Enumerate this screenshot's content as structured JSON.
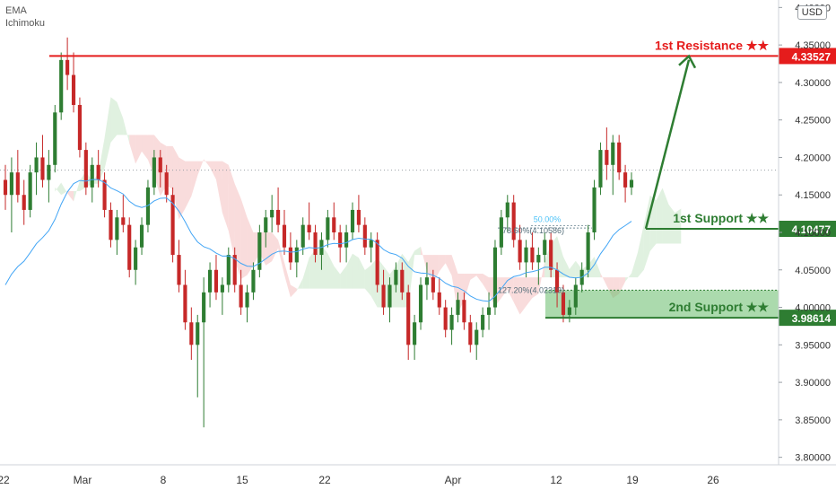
{
  "indicators": [
    "EMA",
    "Ichimoku"
  ],
  "currency": "USD",
  "chart_data": {
    "type": "candlestick",
    "y_axis": {
      "ylim": [
        3.79,
        4.41
      ],
      "ticks": [
        "4.40000",
        "4.35000",
        "4.30000",
        "4.25000",
        "4.20000",
        "4.15000",
        "4.10000",
        "4.05000",
        "4.00000",
        "3.95000",
        "3.90000",
        "3.85000",
        "3.80000"
      ],
      "tick_values": [
        4.4,
        4.35,
        4.3,
        4.25,
        4.2,
        4.15,
        4.1,
        4.05,
        4.0,
        3.95,
        3.9,
        3.85,
        3.8
      ]
    },
    "x_axis": {
      "labels": [
        "22",
        "Mar",
        "8",
        "15",
        "22",
        "Apr",
        "12",
        "19",
        "26"
      ]
    },
    "candles_ohlc": [
      [
        4.17,
        4.19,
        4.13,
        4.15
      ],
      [
        4.15,
        4.2,
        4.1,
        4.18
      ],
      [
        4.18,
        4.21,
        4.14,
        4.15
      ],
      [
        4.15,
        4.17,
        4.11,
        4.13
      ],
      [
        4.13,
        4.19,
        4.12,
        4.18
      ],
      [
        4.18,
        4.22,
        4.15,
        4.2
      ],
      [
        4.2,
        4.23,
        4.16,
        4.17
      ],
      [
        4.17,
        4.21,
        4.14,
        4.19
      ],
      [
        4.19,
        4.27,
        4.18,
        4.26
      ],
      [
        4.26,
        4.34,
        4.25,
        4.33
      ],
      [
        4.33,
        4.36,
        4.29,
        4.31
      ],
      [
        4.31,
        4.34,
        4.26,
        4.27
      ],
      [
        4.27,
        4.28,
        4.2,
        4.21
      ],
      [
        4.21,
        4.22,
        4.15,
        4.16
      ],
      [
        4.16,
        4.2,
        4.14,
        4.19
      ],
      [
        4.19,
        4.21,
        4.16,
        4.17
      ],
      [
        4.17,
        4.18,
        4.12,
        4.13
      ],
      [
        4.13,
        4.14,
        4.08,
        4.09
      ],
      [
        4.09,
        4.13,
        4.07,
        4.12
      ],
      [
        4.12,
        4.15,
        4.1,
        4.11
      ],
      [
        4.11,
        4.12,
        4.04,
        4.05
      ],
      [
        4.05,
        4.09,
        4.03,
        4.08
      ],
      [
        4.08,
        4.12,
        4.07,
        4.11
      ],
      [
        4.11,
        4.17,
        4.1,
        4.16
      ],
      [
        4.16,
        4.21,
        4.15,
        4.2
      ],
      [
        4.2,
        4.21,
        4.16,
        4.18
      ],
      [
        4.18,
        4.19,
        4.14,
        4.15
      ],
      [
        4.15,
        4.16,
        4.06,
        4.07
      ],
      [
        4.07,
        4.09,
        4.02,
        4.03
      ],
      [
        4.03,
        4.05,
        3.97,
        3.98
      ],
      [
        3.98,
        4.0,
        3.93,
        3.95
      ],
      [
        3.95,
        3.99,
        3.88,
        3.98
      ],
      [
        3.98,
        4.04,
        3.84,
        4.02
      ],
      [
        4.02,
        4.06,
        4.0,
        4.05
      ],
      [
        4.05,
        4.07,
        4.01,
        4.02
      ],
      [
        4.02,
        4.04,
        3.99,
        4.03
      ],
      [
        4.03,
        4.08,
        4.02,
        4.07
      ],
      [
        4.07,
        4.08,
        4.02,
        4.03
      ],
      [
        4.03,
        4.05,
        3.99,
        4.0
      ],
      [
        4.0,
        4.03,
        3.98,
        4.02
      ],
      [
        4.02,
        4.06,
        4.01,
        4.05
      ],
      [
        4.05,
        4.11,
        4.04,
        4.1
      ],
      [
        4.1,
        4.13,
        4.08,
        4.12
      ],
      [
        4.12,
        4.15,
        4.1,
        4.13
      ],
      [
        4.13,
        4.16,
        4.1,
        4.11
      ],
      [
        4.11,
        4.13,
        4.07,
        4.08
      ],
      [
        4.08,
        4.1,
        4.05,
        4.06
      ],
      [
        4.06,
        4.09,
        4.04,
        4.08
      ],
      [
        4.08,
        4.12,
        4.07,
        4.11
      ],
      [
        4.11,
        4.14,
        4.09,
        4.1
      ],
      [
        4.1,
        4.11,
        4.06,
        4.07
      ],
      [
        4.07,
        4.1,
        4.05,
        4.09
      ],
      [
        4.09,
        4.13,
        4.08,
        4.12
      ],
      [
        4.12,
        4.14,
        4.09,
        4.1
      ],
      [
        4.1,
        4.11,
        4.06,
        4.08
      ],
      [
        4.08,
        4.11,
        4.06,
        4.1
      ],
      [
        4.1,
        4.14,
        4.09,
        4.13
      ],
      [
        4.13,
        4.15,
        4.1,
        4.11
      ],
      [
        4.11,
        4.12,
        4.07,
        4.08
      ],
      [
        4.08,
        4.1,
        4.06,
        4.09
      ],
      [
        4.09,
        4.1,
        4.02,
        4.03
      ],
      [
        4.03,
        4.05,
        3.99,
        4.0
      ],
      [
        4.0,
        4.04,
        3.98,
        4.03
      ],
      [
        4.03,
        4.06,
        4.02,
        4.05
      ],
      [
        4.05,
        4.06,
        4.01,
        4.02
      ],
      [
        4.02,
        4.03,
        3.93,
        3.95
      ],
      [
        3.95,
        3.99,
        3.93,
        3.98
      ],
      [
        3.98,
        4.04,
        3.97,
        4.03
      ],
      [
        4.03,
        4.06,
        4.01,
        4.04
      ],
      [
        4.04,
        4.05,
        4.01,
        4.02
      ],
      [
        4.02,
        4.04,
        3.99,
        4.0
      ],
      [
        4.0,
        4.01,
        3.96,
        3.97
      ],
      [
        3.97,
        4.0,
        3.95,
        3.99
      ],
      [
        3.99,
        4.02,
        3.98,
        4.01
      ],
      [
        4.01,
        4.02,
        3.97,
        3.98
      ],
      [
        3.98,
        3.99,
        3.94,
        3.95
      ],
      [
        3.95,
        3.98,
        3.93,
        3.97
      ],
      [
        3.97,
        4.0,
        3.96,
        3.99
      ],
      [
        3.99,
        4.02,
        3.97,
        4.0
      ],
      [
        4.0,
        4.09,
        3.99,
        4.08
      ],
      [
        4.08,
        4.13,
        4.07,
        4.12
      ],
      [
        4.12,
        4.15,
        4.1,
        4.14
      ],
      [
        4.14,
        4.15,
        4.08,
        4.09
      ],
      [
        4.09,
        4.11,
        4.05,
        4.06
      ],
      [
        4.06,
        4.09,
        4.04,
        4.08
      ],
      [
        4.08,
        4.1,
        4.05,
        4.06
      ],
      [
        4.06,
        4.08,
        4.03,
        4.07
      ],
      [
        4.07,
        4.1,
        4.06,
        4.09
      ],
      [
        4.09,
        4.1,
        4.04,
        4.05
      ],
      [
        4.05,
        4.06,
        4.0,
        4.02
      ],
      [
        4.02,
        4.03,
        3.98,
        3.99
      ],
      [
        3.99,
        4.01,
        3.98,
        4.0
      ],
      [
        4.0,
        4.04,
        3.99,
        4.03
      ],
      [
        4.03,
        4.06,
        4.02,
        4.05
      ],
      [
        4.05,
        4.11,
        4.04,
        4.1
      ],
      [
        4.1,
        4.17,
        4.09,
        4.16
      ],
      [
        4.16,
        4.22,
        4.15,
        4.21
      ],
      [
        4.21,
        4.24,
        4.17,
        4.19
      ],
      [
        4.19,
        4.23,
        4.15,
        4.22
      ],
      [
        4.22,
        4.23,
        4.17,
        4.18
      ],
      [
        4.18,
        4.19,
        4.14,
        4.16
      ],
      [
        4.16,
        4.18,
        4.15,
        4.17
      ]
    ],
    "levels": [
      {
        "name": "1st Resistance ★★",
        "value": "4.33527",
        "y": 4.33527,
        "color": "#e51c1c"
      },
      {
        "name": "1st Support ★★",
        "value": "4.10477",
        "y": 4.10477,
        "color": "#2e7d32"
      },
      {
        "name": "2nd Support ★★",
        "value": "3.98614",
        "y": 3.98614,
        "color": "#2e7d32"
      }
    ],
    "fib_labels": [
      "50.00%",
      "78.60%(4.10586)",
      "127.20%(4.02319)"
    ],
    "last_price_line": 4.183,
    "colors": {
      "up": "#2e7d32",
      "down": "#c62828",
      "ema": "#42a5f5",
      "cloud_green": "#a5d6a7",
      "cloud_red": "#ef9a9a",
      "arrow": "#2e7d32",
      "zone": "#66bb6a"
    }
  }
}
